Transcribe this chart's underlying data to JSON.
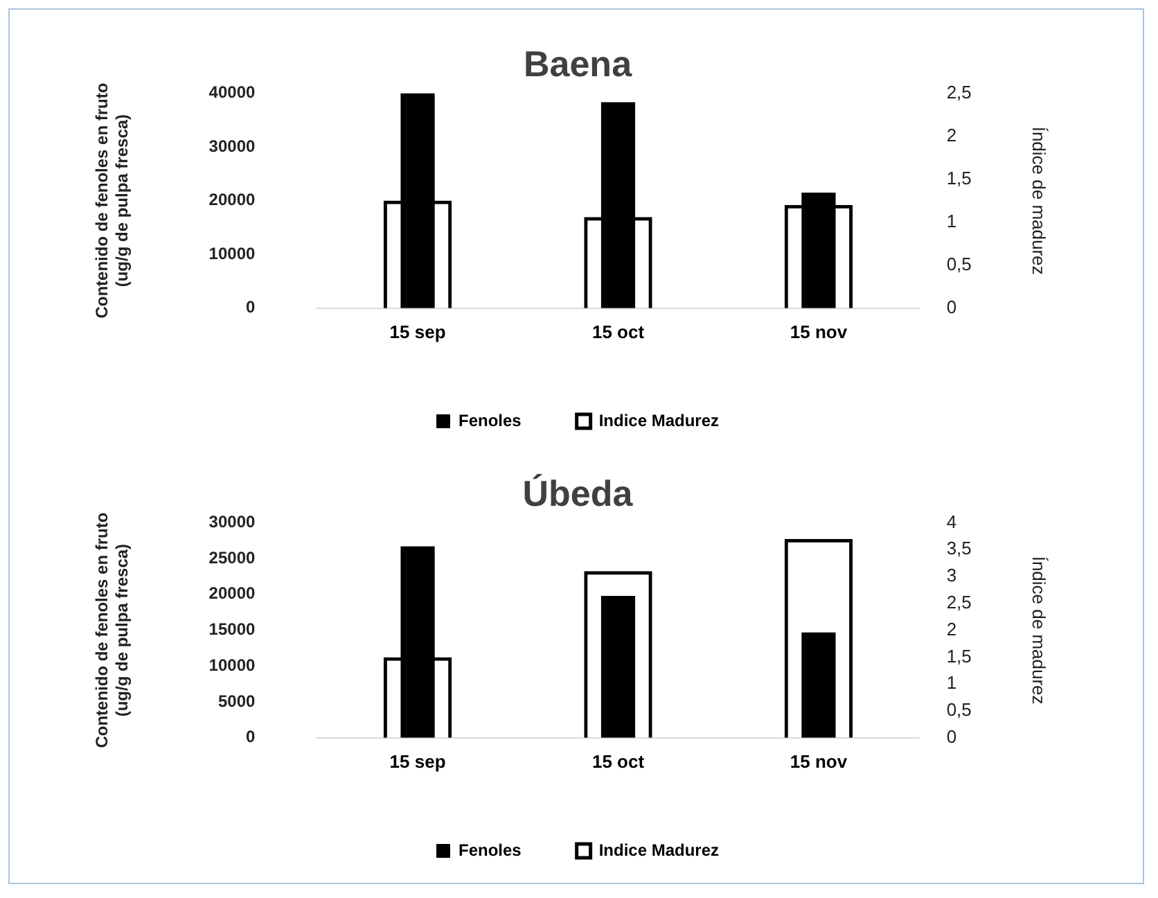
{
  "chart_data": [
    {
      "type": "bar",
      "title": "Baena",
      "categories": [
        "15 sep",
        "15 oct",
        "15 nov"
      ],
      "ylabel": "Contenido de fenoles en fruto\n(ug/g de pulpa fresca)",
      "y2label": "Índice de madurez",
      "ylim": [
        0,
        40000
      ],
      "yticks": [
        0,
        10000,
        20000,
        30000,
        40000
      ],
      "y2lim": [
        0,
        2.5
      ],
      "y2ticks": [
        0,
        {
          "value": 0.5,
          "label": "0,5"
        },
        1,
        {
          "value": 1.5,
          "label": "1,5"
        },
        2,
        {
          "value": 2.5,
          "label": "2,5"
        }
      ],
      "grid": false,
      "legend": "bottom",
      "series": [
        {
          "name": "Fenoles",
          "color": "#000000",
          "values": [
            40000,
            38300,
            21500
          ]
        },
        {
          "name": "Indice Madurez",
          "color": "#000000",
          "axis": "y2",
          "values": [
            1.25,
            1.06,
            1.2
          ]
        }
      ]
    },
    {
      "type": "bar",
      "title": "Úbeda",
      "categories": [
        "15 sep",
        "15 oct",
        "15 nov"
      ],
      "ylabel": "Contenido de fenoles en fruto\n(ug/g de pulpa fresca)",
      "y2label": "Índice de madurez",
      "ylim": [
        0,
        30000
      ],
      "yticks": [
        0,
        5000,
        10000,
        15000,
        20000,
        25000,
        30000
      ],
      "y2lim": [
        0,
        4
      ],
      "y2ticks": [
        0,
        {
          "value": 0.5,
          "label": "0,5"
        },
        1,
        {
          "value": 1.5,
          "label": "1,5"
        },
        2,
        {
          "value": 2.5,
          "label": "2,5"
        },
        3,
        {
          "value": 3.5,
          "label": "3,5"
        },
        4
      ],
      "grid": false,
      "legend": "bottom",
      "series": [
        {
          "name": "Fenoles",
          "color": "#000000",
          "values": [
            26700,
            19800,
            14700
          ]
        },
        {
          "name": "Indice Madurez",
          "color": "#000000",
          "axis": "y2",
          "values": [
            1.5,
            3.1,
            3.7
          ]
        }
      ]
    }
  ]
}
